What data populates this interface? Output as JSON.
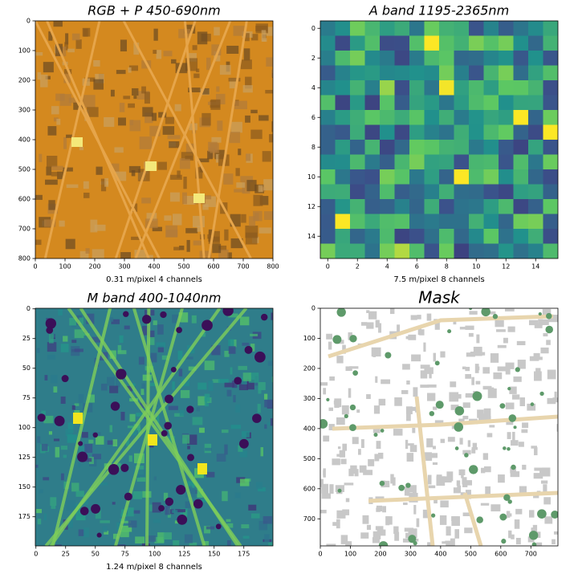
{
  "chart_data": [
    {
      "type": "image",
      "title": "RGB + P 450-690nm",
      "x_label": "0.31 m/pixel 4 channels",
      "xlim": [
        0,
        800
      ],
      "ylim": [
        800,
        0
      ],
      "xticks": [
        0,
        100,
        200,
        300,
        400,
        500,
        600,
        700,
        800
      ],
      "yticks": [
        0,
        100,
        200,
        300,
        400,
        500,
        600,
        700,
        800
      ]
    },
    {
      "type": "image",
      "title": "A band 1195-2365nm",
      "x_label": "7.5 m/pixel 8 channels",
      "xlim": [
        -0.5,
        15.5
      ],
      "ylim": [
        15.5,
        -0.5
      ],
      "xticks": [
        0,
        2,
        4,
        6,
        8,
        10,
        12,
        14
      ],
      "yticks": [
        0,
        2,
        4,
        6,
        8,
        10,
        12,
        14
      ]
    },
    {
      "type": "image",
      "title": "M band 400-1040nm",
      "x_label": "1.24 m/pixel 8 channels",
      "xlim": [
        -0.5,
        199.5
      ],
      "ylim": [
        199.5,
        -0.5
      ],
      "xticks": [
        0,
        25,
        50,
        75,
        100,
        125,
        150,
        175
      ],
      "yticks": [
        0,
        25,
        50,
        75,
        100,
        125,
        150,
        175
      ]
    },
    {
      "type": "image",
      "title": "Mask",
      "xlim": [
        0,
        790
      ],
      "ylim": [
        790,
        0
      ],
      "xticks": [
        0,
        100,
        200,
        300,
        400,
        500,
        600,
        700
      ],
      "yticks": [
        0,
        100,
        200,
        300,
        400,
        500,
        600,
        700
      ]
    }
  ]
}
